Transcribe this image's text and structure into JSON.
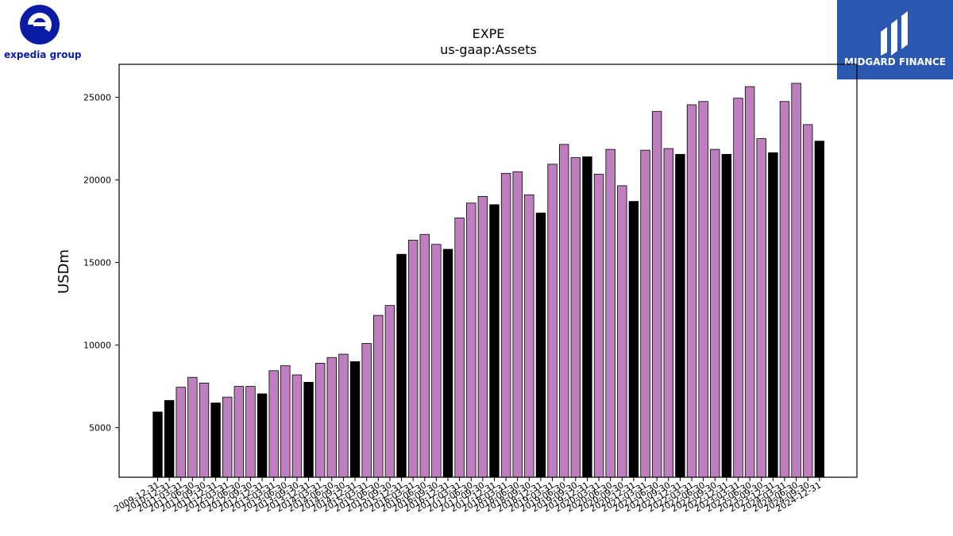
{
  "brands": {
    "left_logo_text": "expedia group",
    "right_logo_text": "MIDGARD FINANCE"
  },
  "colors": {
    "bar_quarterly": "#bf7fbf",
    "bar_annual": "#000000",
    "expedia_blue": "#0a1ba6",
    "midgard_blue": "#2a58b0"
  },
  "chart_data": {
    "type": "bar",
    "title": "EXPE",
    "subtitle": "us-gaap:Assets",
    "ylabel": "USDm",
    "xlabel": "",
    "ylim": [
      2000,
      27000
    ],
    "yticks": [
      5000,
      10000,
      15000,
      20000,
      25000
    ],
    "categories": [
      "2009-12-31",
      "2010-12-31",
      "2011-03-31",
      "2011-06-30",
      "2011-09-30",
      "2011-12-31",
      "2012-03-31",
      "2012-06-30",
      "2012-09-30",
      "2012-12-31",
      "2013-03-31",
      "2013-06-30",
      "2013-09-30",
      "2013-12-31",
      "2014-03-31",
      "2014-06-30",
      "2014-09-30",
      "2014-12-31",
      "2015-03-31",
      "2015-06-30",
      "2015-09-30",
      "2015-12-31",
      "2016-03-31",
      "2016-06-30",
      "2016-09-30",
      "2016-12-31",
      "2017-03-31",
      "2017-06-30",
      "2017-09-30",
      "2017-12-31",
      "2018-03-31",
      "2018-06-30",
      "2018-09-30",
      "2018-12-31",
      "2019-03-31",
      "2019-06-30",
      "2019-09-30",
      "2019-12-31",
      "2020-03-31",
      "2020-06-30",
      "2020-09-30",
      "2020-12-31",
      "2021-03-31",
      "2021-06-30",
      "2021-09-30",
      "2021-12-31",
      "2022-03-31",
      "2022-06-30",
      "2022-09-30",
      "2022-12-31",
      "2023-03-31",
      "2023-06-30",
      "2023-09-30",
      "2023-12-31",
      "2024-03-31",
      "2024-06-30",
      "2024-09-30",
      "2024-12-31"
    ],
    "values": [
      5950,
      6650,
      7450,
      8050,
      7700,
      6500,
      6850,
      7500,
      7500,
      7050,
      8450,
      8750,
      8200,
      7750,
      8900,
      9250,
      9450,
      9000,
      10100,
      11800,
      12400,
      15500,
      16350,
      16700,
      16100,
      15800,
      17700,
      18600,
      19000,
      18500,
      20400,
      20500,
      19100,
      18000,
      20950,
      22150,
      21350,
      21400,
      20350,
      21850,
      19650,
      18700,
      21800,
      24150,
      21900,
      21550,
      24550,
      24750,
      21850,
      21550,
      24950,
      25650,
      22500,
      21650,
      24750,
      25850,
      23350,
      22350
    ]
  }
}
